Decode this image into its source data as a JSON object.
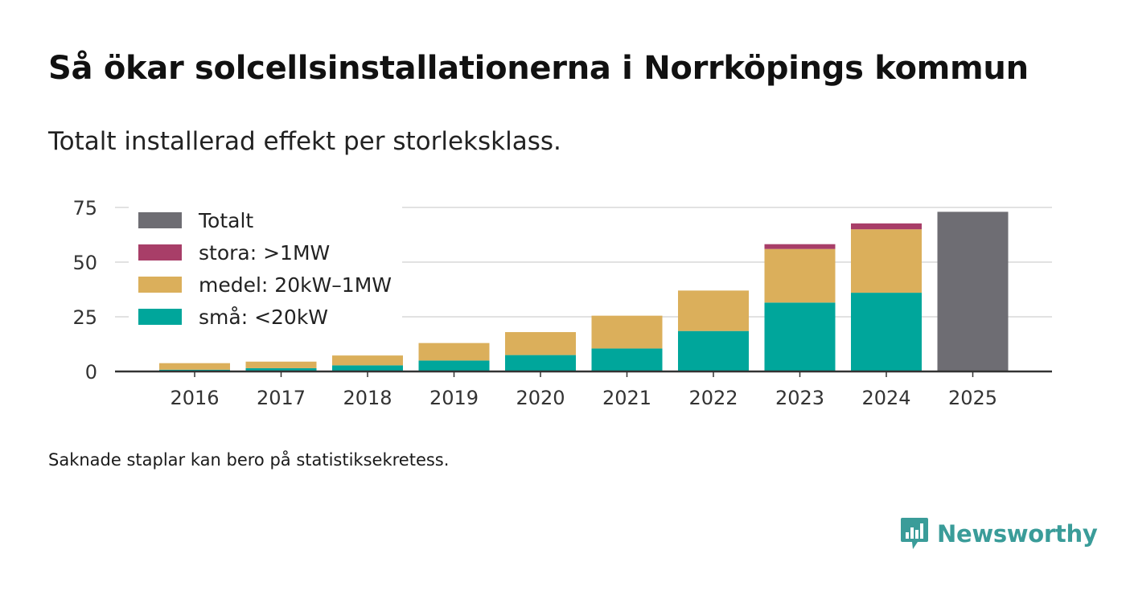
{
  "title": "Så ökar solcellsinstallationerna i Norrköpings kommun",
  "subtitle": "Totalt installerad effekt per storleksklass.",
  "footnote": "Saknade staplar kan bero på statistiksekretess.",
  "brand": {
    "name": "Newsworthy",
    "icon": "newsworthy-logo-icon",
    "color": "#3a9c99"
  },
  "colors": {
    "sma": "#00a69b",
    "medel": "#dbaf5b",
    "stora": "#a83e68",
    "totalt": "#6e6d73",
    "grid": "#e2e2e2",
    "axis": "#333333"
  },
  "chart_data": {
    "type": "bar",
    "stacked": true,
    "title": "Så ökar solcellsinstallationerna i Norrköpings kommun",
    "subtitle": "Totalt installerad effekt per storleksklass.",
    "xlabel": "",
    "ylabel": "",
    "ylim": [
      0,
      75
    ],
    "yticks": [
      0,
      25,
      50,
      75
    ],
    "grid": true,
    "legend_position": "top-left",
    "categories": [
      "2016",
      "2017",
      "2018",
      "2019",
      "2020",
      "2021",
      "2022",
      "2023",
      "2024",
      "2025"
    ],
    "series": [
      {
        "name": "små: <20kW",
        "key": "sma",
        "values": [
          0.8,
          1.5,
          2.8,
          5.0,
          7.5,
          10.5,
          18.5,
          31.5,
          36.0,
          null
        ]
      },
      {
        "name": "medel: 20kW–1MW",
        "key": "medel",
        "values": [
          3.0,
          3.0,
          4.5,
          8.0,
          10.5,
          15.0,
          18.5,
          24.5,
          29.0,
          null
        ]
      },
      {
        "name": "stora: >1MW",
        "key": "stora",
        "values": [
          null,
          null,
          null,
          null,
          null,
          null,
          null,
          2.2,
          2.7,
          null
        ]
      },
      {
        "name": "Totalt",
        "key": "totalt",
        "values": [
          null,
          null,
          null,
          null,
          null,
          null,
          null,
          null,
          null,
          73.0
        ]
      }
    ],
    "legend_order": [
      "Totalt",
      "stora: >1MW",
      "medel: 20kW–1MW",
      "små: <20kW"
    ]
  }
}
